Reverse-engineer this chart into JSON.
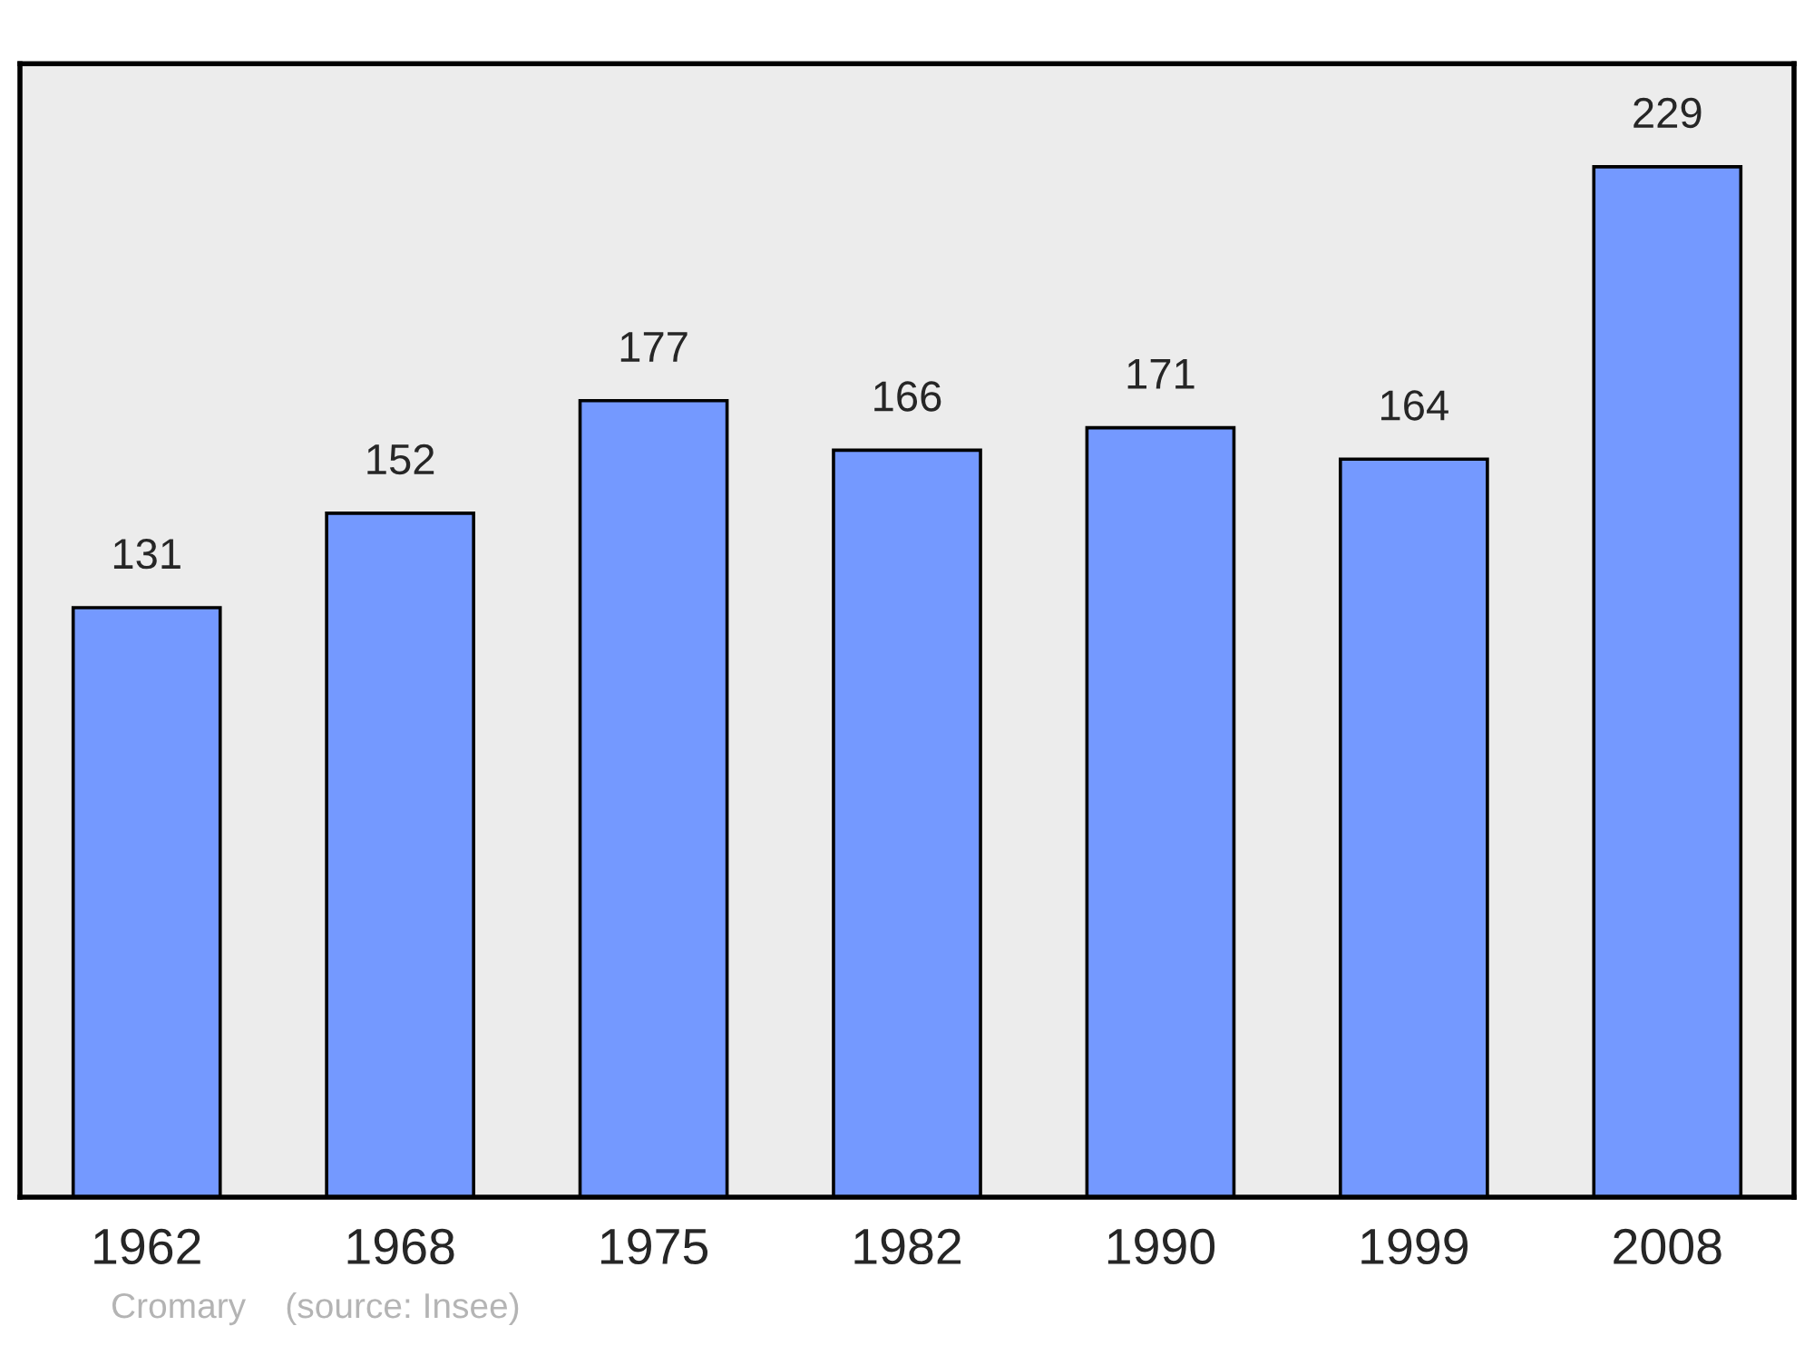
{
  "chart_data": {
    "type": "bar",
    "categories": [
      "1962",
      "1968",
      "1975",
      "1982",
      "1990",
      "1999",
      "2008"
    ],
    "values": [
      131,
      152,
      177,
      166,
      171,
      164,
      229
    ],
    "color": "#7499ff",
    "data_labels": true,
    "grid": false,
    "legend": false,
    "annotations": [
      "Cromary    (source: Insee)"
    ]
  }
}
